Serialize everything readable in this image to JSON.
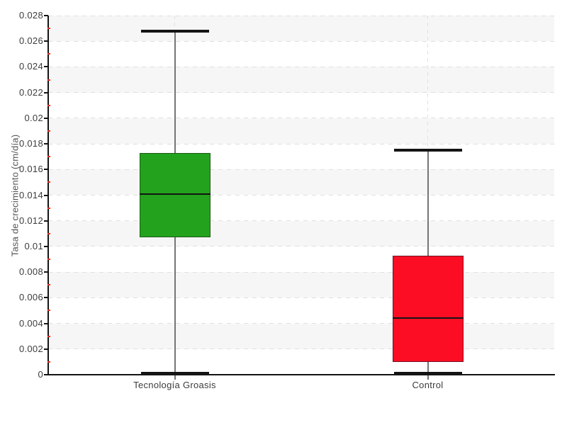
{
  "chart_data": {
    "type": "boxplot",
    "title": "",
    "xlabel": "",
    "ylabel": "Tasa de crecimiento (cm/día)",
    "categories": [
      "Tecnología Groasis",
      "Control"
    ],
    "series": [
      {
        "name": "Tecnología Groasis",
        "min": 0.0001,
        "q1": 0.0107,
        "median": 0.0141,
        "q3": 0.0173,
        "max": 0.0268,
        "fill_color": "#23a31d",
        "border_color": "#1e5a14"
      },
      {
        "name": "Control",
        "min": 0.0001,
        "q1": 0.001,
        "median": 0.0044,
        "q3": 0.0093,
        "max": 0.0175,
        "fill_color": "#fc0d24",
        "border_color": "#701420"
      }
    ],
    "ylim": [
      0,
      0.028
    ],
    "y_major_step": 0.002,
    "y_minor_step": 0.001,
    "y_tick_labels": [
      "0",
      "0.002",
      "0.004",
      "0.006",
      "0.008",
      "0.01",
      "0.012",
      "0.014",
      "0.016",
      "0.018",
      "0.02",
      "0.022",
      "0.024",
      "0.026",
      "0.028"
    ],
    "legend": "none",
    "grid": {
      "horizontal_dashed": true,
      "vertical_dashed_at_categories": true,
      "alternating_bands": true
    },
    "colors": {
      "background": "#ffffff",
      "band": "#f6f6f6",
      "grid_line": "#e0e0e0",
      "axis": "#141414",
      "major_tick": "#141414",
      "minor_tick": "#f03020",
      "whisker_line": "#757575",
      "cap": "#141414",
      "median_line": "#141414",
      "tick_label_text": "#3c3c3c",
      "category_label_text": "#3c3c3c",
      "axis_title_text": "#555555"
    }
  }
}
